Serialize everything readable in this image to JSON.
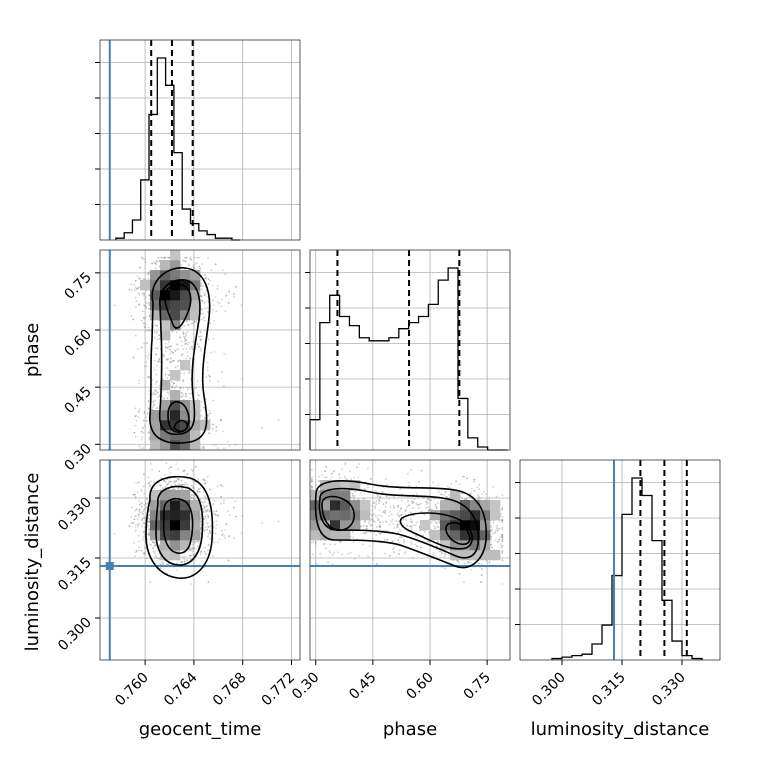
{
  "chart_data": {
    "type": "corner",
    "parameters": [
      "geocent_time",
      "phase",
      "luminosity_distance"
    ],
    "injection": {
      "geocent_time": 0.7571,
      "phase": null,
      "luminosity_distance": 0.313
    },
    "colors": {
      "injection": "#4682b4",
      "hist": "#000000",
      "scatter": "#9a9a9a",
      "grid": "#b0b0b0"
    },
    "geocent_time": {
      "label": "geocent_time",
      "range": [
        0.7563,
        0.7727
      ],
      "ticks": [
        0.76,
        0.764,
        0.768,
        0.772
      ],
      "tick_labels": [
        "0.760",
        "0.764",
        "0.768",
        "0.772"
      ],
      "hist_edges_start": 0.7576,
      "hist_bin": 0.00068,
      "hist_counts": [
        1,
        4,
        11,
        33,
        69,
        100,
        85,
        48,
        17,
        9,
        5,
        3,
        1,
        1,
        0
      ],
      "quantiles": [
        0.7605,
        0.7622,
        0.7639
      ]
    },
    "phase": {
      "label": "phase",
      "range": [
        0.285,
        0.81
      ],
      "ticks": [
        0.3,
        0.45,
        0.6,
        0.75
      ],
      "tick_labels": [
        "0.30",
        "0.45",
        "0.60",
        "0.75"
      ],
      "hist_edges_start": 0.285,
      "hist_bin": 0.0259,
      "hist_counts": [
        10,
        42,
        51,
        44,
        41,
        37,
        36,
        36,
        37,
        40,
        42,
        44,
        48,
        56,
        60,
        17,
        4,
        1,
        0,
        0
      ],
      "quantiles": [
        0.357,
        0.545,
        0.677
      ]
    },
    "luminosity_distance": {
      "label": "luminosity_distance",
      "range": [
        0.2895,
        0.3395
      ],
      "ticks": [
        0.3,
        0.315,
        0.33
      ],
      "tick_labels": [
        "0.300",
        "0.315",
        "0.330"
      ],
      "hist_edges_start": 0.2975,
      "hist_bin": 0.0025,
      "hist_counts": [
        1,
        2,
        3,
        4,
        11,
        24,
        58,
        100,
        125,
        113,
        82,
        41,
        13,
        3,
        1
      ],
      "quantiles": [
        0.3196,
        0.3256,
        0.3312
      ]
    }
  }
}
